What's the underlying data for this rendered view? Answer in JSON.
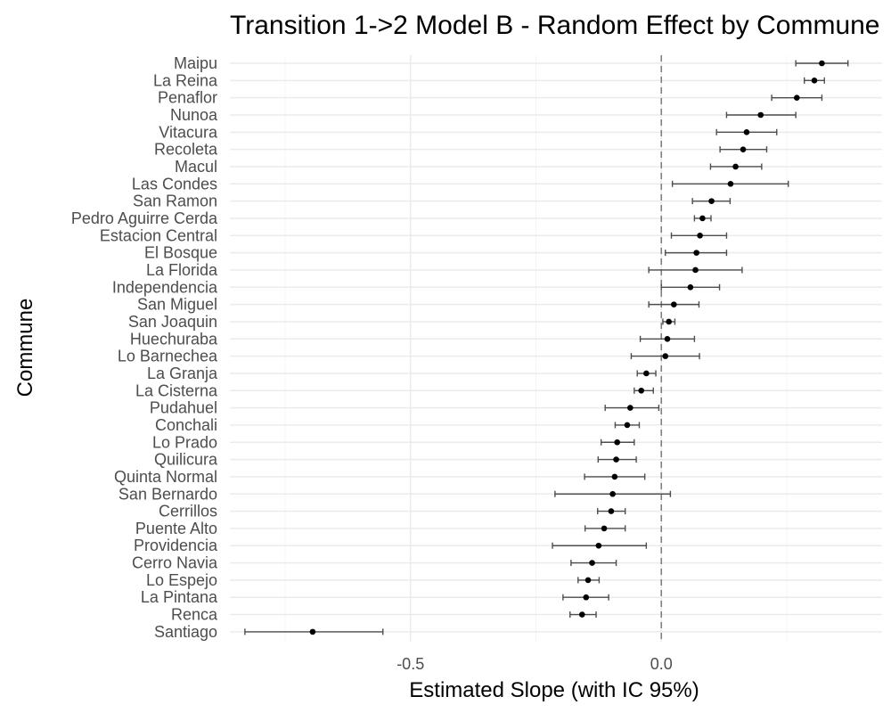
{
  "colors": {
    "background": "#ffffff",
    "grid_major": "#ebebeb",
    "grid_minor": "#f5f5f5",
    "point": "#000000",
    "errorbar": "#4d4d4d",
    "reference_line": "#7f7f7f",
    "text": "#000000",
    "tick_text": "#4d4d4d"
  },
  "chart_data": {
    "type": "scatter",
    "subtype": "point-range / forest plot",
    "title": "Transition 1->2 Model B - Random Effect by Commune",
    "xlabel": "Estimated Slope (with IC 95%)",
    "ylabel": "Commune",
    "xlim": [
      -0.86,
      0.44
    ],
    "x_ticks": [
      -0.5,
      0.0
    ],
    "x_tick_labels": [
      "-0.5",
      "0.0"
    ],
    "reference_line_x": 0,
    "reference_line_style": "dashed",
    "grid": true,
    "legend": "none",
    "categories": [
      "Maipu",
      "La Reina",
      "Penaflor",
      "Nunoa",
      "Vitacura",
      "Recoleta",
      "Macul",
      "Las Condes",
      "San Ramon",
      "Pedro Aguirre Cerda",
      "Estacion Central",
      "El Bosque",
      "La Florida",
      "Independencia",
      "San Miguel",
      "San Joaquin",
      "Huechuraba",
      "Lo Barnechea",
      "La Granja",
      "La Cisterna",
      "Pudahuel",
      "Conchali",
      "Lo Prado",
      "Quilicura",
      "Quinta Normal",
      "San Bernardo",
      "Cerrillos",
      "Puente Alto",
      "Providencia",
      "Cerro Navia",
      "Lo Espejo",
      "La Pintana",
      "Renca",
      "Santiago"
    ],
    "estimate": [
      0.32,
      0.305,
      0.27,
      0.198,
      0.17,
      0.163,
      0.148,
      0.138,
      0.1,
      0.082,
      0.077,
      0.07,
      0.068,
      0.058,
      0.025,
      0.015,
      0.012,
      0.008,
      -0.03,
      -0.04,
      -0.062,
      -0.068,
      -0.088,
      -0.09,
      -0.093,
      -0.097,
      -0.1,
      -0.114,
      -0.125,
      -0.138,
      -0.146,
      -0.15,
      -0.158,
      -0.695
    ],
    "ci_lower": [
      0.268,
      0.285,
      0.22,
      0.13,
      0.11,
      0.117,
      0.098,
      0.022,
      0.062,
      0.066,
      0.02,
      0.008,
      -0.025,
      0.0,
      -0.025,
      0.003,
      -0.042,
      -0.06,
      -0.048,
      -0.054,
      -0.112,
      -0.092,
      -0.12,
      -0.126,
      -0.153,
      -0.212,
      -0.127,
      -0.152,
      -0.217,
      -0.18,
      -0.166,
      -0.196,
      -0.182,
      -0.83
    ],
    "ci_upper": [
      0.372,
      0.325,
      0.32,
      0.268,
      0.23,
      0.21,
      0.2,
      0.253,
      0.137,
      0.099,
      0.13,
      0.13,
      0.161,
      0.116,
      0.075,
      0.027,
      0.066,
      0.076,
      -0.011,
      -0.016,
      -0.005,
      -0.044,
      -0.054,
      -0.05,
      -0.033,
      0.018,
      -0.072,
      -0.072,
      -0.03,
      -0.09,
      -0.124,
      -0.105,
      -0.13,
      -0.555
    ]
  }
}
